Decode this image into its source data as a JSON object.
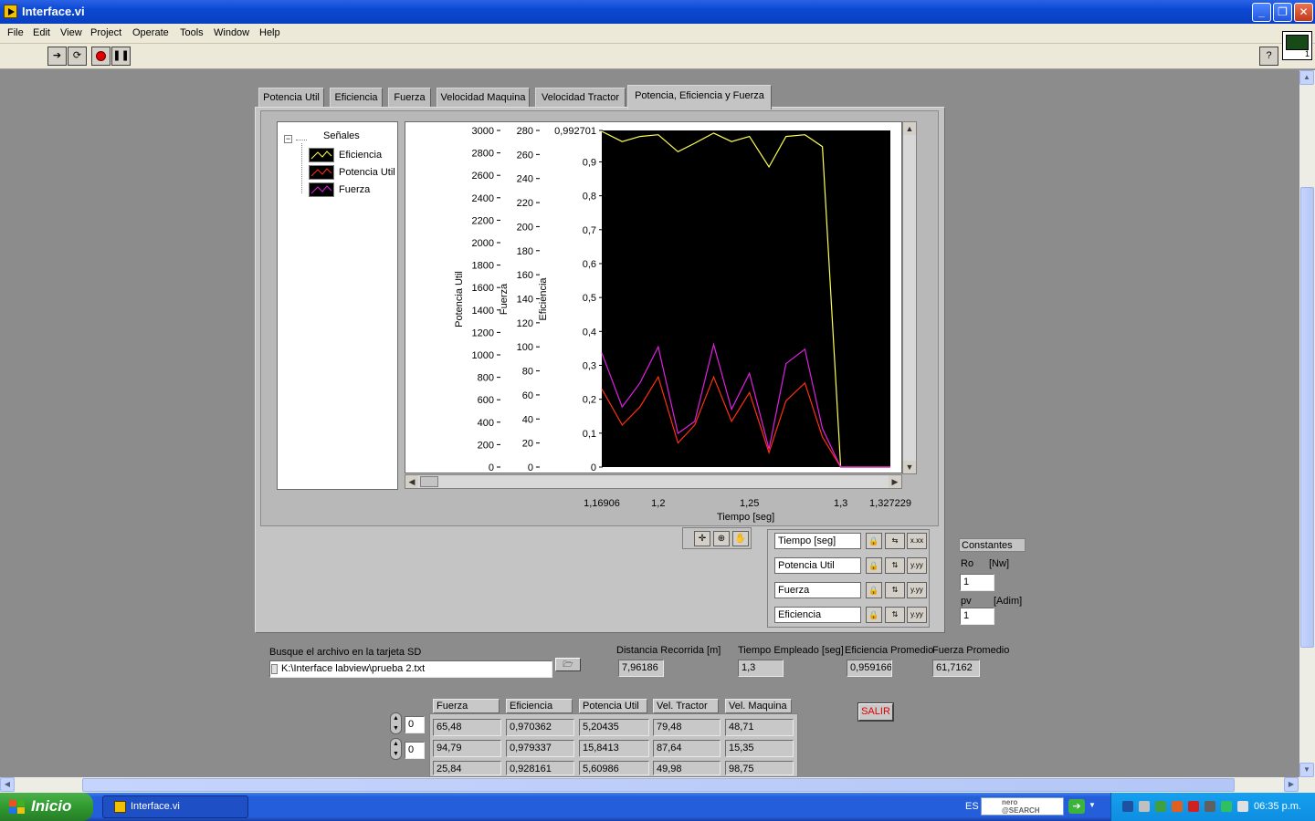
{
  "window": {
    "title": "Interface.vi"
  },
  "menu": [
    "File",
    "Edit",
    "View",
    "Project",
    "Operate",
    "Tools",
    "Window",
    "Help"
  ],
  "tabs": [
    "Potencia Util",
    "Eficiencia",
    "Fuerza",
    "Velocidad Maquina",
    "Velocidad Tractor",
    "Potencia, Eficiencia y Fuerza"
  ],
  "legend": {
    "title": "Señales",
    "items": [
      {
        "label": "Eficiencia",
        "color": "#ffff55"
      },
      {
        "label": "Potencia Util",
        "color": "#ff3010"
      },
      {
        "label": "Fuerza",
        "color": "#e020e0"
      }
    ]
  },
  "chart_data": {
    "type": "line",
    "xlabel": "Tiempo [seg]",
    "xlim": [
      1.16906,
      1.327229
    ],
    "x_ticks": [
      "1,16906",
      "1,2",
      "1,25",
      "1,3",
      "1,327229"
    ],
    "axes": [
      {
        "label": "Potencia Util",
        "lim": [
          0,
          3000
        ],
        "ticks": [
          "3000",
          "2800",
          "2600",
          "2400",
          "2200",
          "2000",
          "1800",
          "1600",
          "1400",
          "1200",
          "1000",
          "800",
          "600",
          "400",
          "200",
          "0"
        ]
      },
      {
        "label": "Fuerza",
        "lim": [
          0,
          280
        ],
        "ticks": [
          "280",
          "260",
          "240",
          "220",
          "200",
          "180",
          "160",
          "140",
          "120",
          "100",
          "80",
          "60",
          "40",
          "20",
          "0"
        ]
      },
      {
        "label": "Eficiencia",
        "lim": [
          0,
          0.992701
        ],
        "ticks": [
          "0,992701",
          "0,9",
          "0,8",
          "0,7",
          "0,6",
          "0,5",
          "0,4",
          "0,3",
          "0,2",
          "0,1",
          "0"
        ]
      }
    ],
    "x": [
      1.16906,
      1.1802,
      1.19,
      1.2,
      1.2108,
      1.22,
      1.2304,
      1.2402,
      1.25,
      1.2607,
      1.27,
      1.2804,
      1.29,
      1.3,
      1.3112,
      1.3211,
      1.327229
    ],
    "series": [
      {
        "name": "Eficiencia",
        "axis": 2,
        "color": "#ffff55",
        "values": [
          0.99,
          0.96,
          0.975,
          0.98,
          0.93,
          0.955,
          0.985,
          0.96,
          0.975,
          0.885,
          0.975,
          0.98,
          0.945,
          0.0,
          0.0,
          0.0,
          0.0
        ]
      },
      {
        "name": "Potencia Util",
        "axis": 1,
        "color": "#ff3010",
        "values": [
          65,
          35,
          50,
          75,
          20,
          35,
          75,
          38,
          62,
          12,
          55,
          70,
          25,
          0,
          0,
          0,
          0
        ]
      },
      {
        "name": "Fuerza",
        "axis": 1,
        "color": "#e020e0",
        "values": [
          95,
          50,
          70,
          100,
          28,
          38,
          102,
          48,
          78,
          15,
          86,
          98,
          32,
          0,
          0,
          0,
          0
        ]
      }
    ]
  },
  "scales": [
    "Tiempo [seg]",
    "Potencia Util",
    "Fuerza",
    "Eficiencia"
  ],
  "constantes": {
    "title": "Constantes",
    "ro_label": "Ro",
    "ro_unit": "[Nw]",
    "ro_value": "1",
    "pv_label": "pv",
    "pv_unit": "[Adim]",
    "pv_value": "1"
  },
  "file": {
    "label": "Busque el archivo en la tarjeta SD",
    "path": "K:\\Interface labview\\prueba 2.txt"
  },
  "stats": [
    {
      "label": "Distancia Recorrida [m]",
      "value": "7,96186"
    },
    {
      "label": "Tiempo Empleado [seg]",
      "value": "1,3"
    },
    {
      "label": "Eficiencia Promedio",
      "value": "0,959166"
    },
    {
      "label": "Fuerza Promedio",
      "value": "61,7162"
    }
  ],
  "table": {
    "headers": [
      "Fuerza",
      "Eficiencia",
      "Potencia Util",
      "Vel. Tractor",
      "Vel. Maquina"
    ],
    "rows": [
      [
        "65,48",
        "0,970362",
        "5,20435",
        "79,48",
        "48,71"
      ],
      [
        "94,79",
        "0,979337",
        "15,8413",
        "87,64",
        "15,35"
      ],
      [
        "25,84",
        "0,928161",
        "5,60986",
        "49,98",
        "98,75"
      ]
    ],
    "row_index": "0",
    "col_index": "0"
  },
  "salir_label": "SALIR",
  "taskbar": {
    "start_label": "Inicio",
    "task_label": "Interface.vi",
    "lang": "ES",
    "clock": "06:35 p.m.",
    "nero_line1": "nero",
    "nero_line2": "@SEARCH"
  }
}
